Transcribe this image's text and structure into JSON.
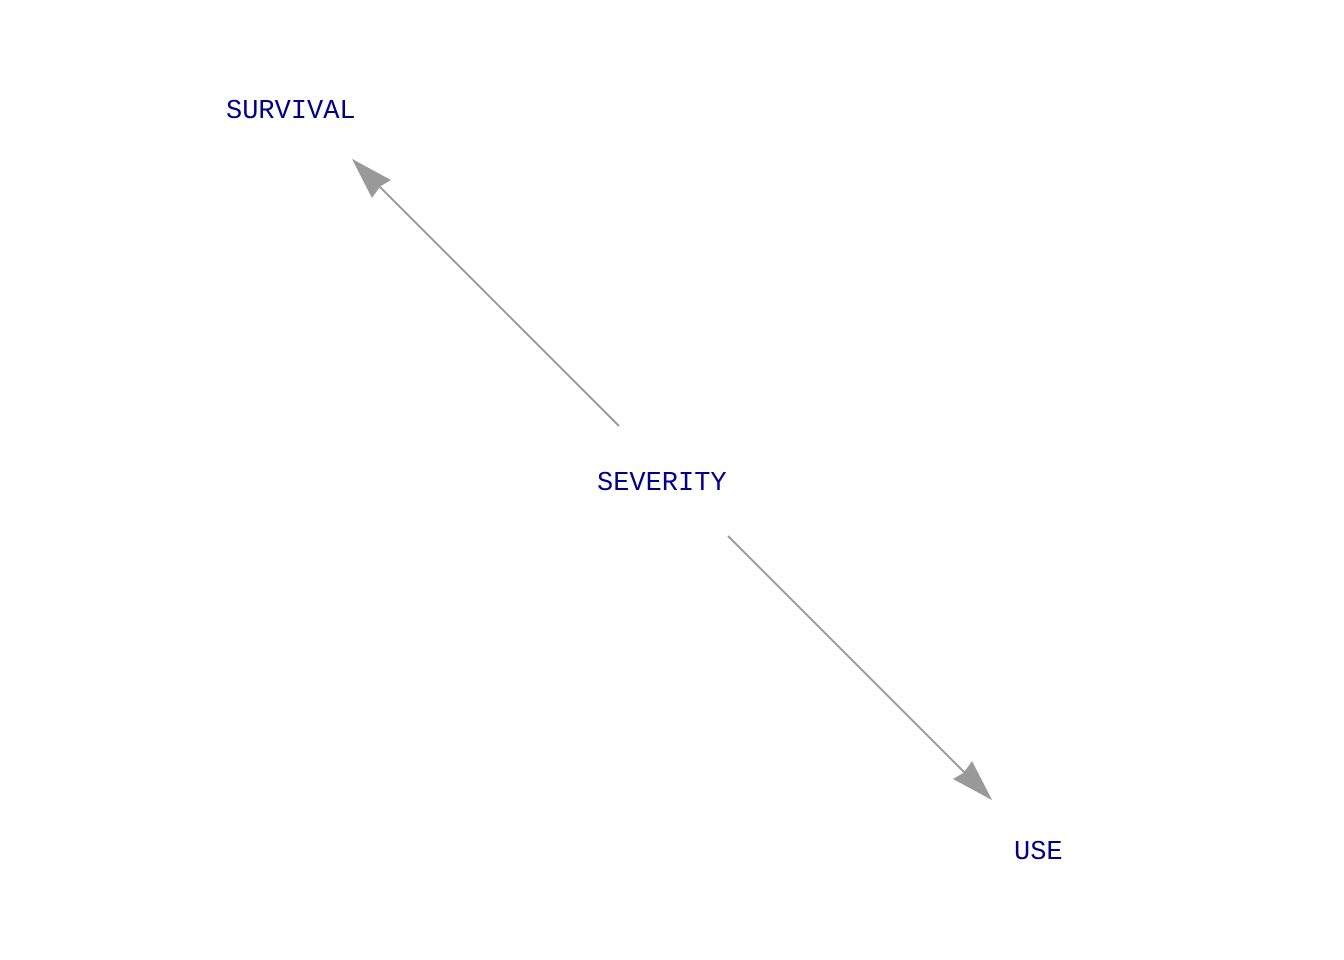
{
  "diagram": {
    "type": "directed-graph",
    "colors": {
      "node_text": "#00008b",
      "edge": "#999999",
      "background": "#ffffff"
    },
    "nodes": [
      {
        "id": "survival",
        "label": "SURVIVAL"
      },
      {
        "id": "severity",
        "label": "SEVERITY"
      },
      {
        "id": "use",
        "label": "USE"
      }
    ],
    "edges": [
      {
        "from": "severity",
        "to": "survival"
      },
      {
        "from": "severity",
        "to": "use"
      }
    ]
  }
}
